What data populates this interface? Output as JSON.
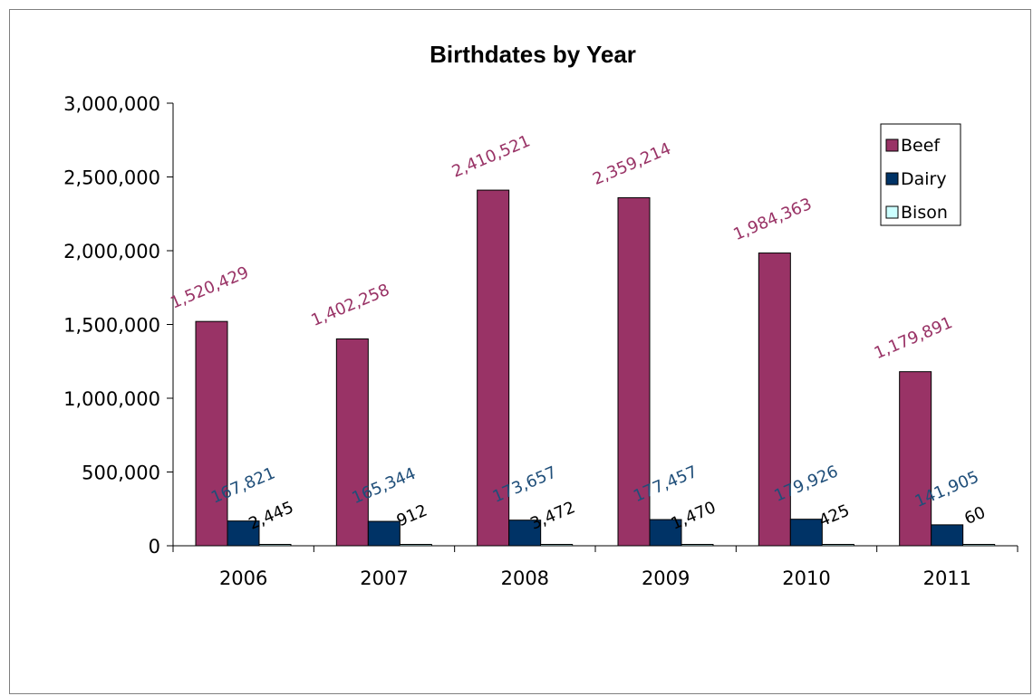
{
  "chart_data": {
    "type": "bar",
    "title": "Birthdates by Year",
    "categories": [
      "2006",
      "2007",
      "2008",
      "2009",
      "2010",
      "2011"
    ],
    "series": [
      {
        "name": "Beef",
        "color": "#993366",
        "label_color": "#993366",
        "values": [
          1520429,
          1402258,
          2410521,
          2359214,
          1984363,
          1179891
        ],
        "labels": [
          "1,520,429",
          "1,402,258",
          "2,410,521",
          "2,359,214",
          "1,984,363",
          "1,179,891"
        ]
      },
      {
        "name": "Dairy",
        "color": "#003366",
        "label_color": "#1f4e79",
        "values": [
          167821,
          165344,
          173657,
          177457,
          179926,
          141905
        ],
        "labels": [
          "167,821",
          "165,344",
          "173,657",
          "177,457",
          "179,926",
          "141,905"
        ]
      },
      {
        "name": "Bison",
        "color": "#ccffff",
        "label_color": "#000000",
        "values": [
          2445,
          912,
          3472,
          1470,
          425,
          60
        ],
        "labels": [
          "2,445",
          "912",
          "3,472",
          "1,470",
          "425",
          "60"
        ]
      }
    ],
    "ylim": [
      0,
      3000000
    ],
    "yticks": [
      0,
      500000,
      1000000,
      1500000,
      2000000,
      2500000,
      3000000
    ],
    "ytick_labels": [
      "0",
      "500,000",
      "1,000,000",
      "1,500,000",
      "2,000,000",
      "2,500,000",
      "3,000,000"
    ],
    "grid": false,
    "legend_position": "top-right",
    "data_labels": "rotated"
  }
}
